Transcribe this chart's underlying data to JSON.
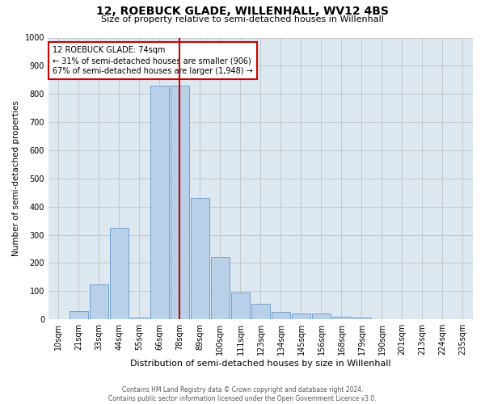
{
  "title": "12, ROEBUCK GLADE, WILLENHALL, WV12 4BS",
  "subtitle": "Size of property relative to semi-detached houses in Willenhall",
  "xlabel": "Distribution of semi-detached houses by size in Willenhall",
  "ylabel": "Number of semi-detached properties",
  "bar_labels": [
    "10sqm",
    "21sqm",
    "33sqm",
    "44sqm",
    "55sqm",
    "66sqm",
    "78sqm",
    "89sqm",
    "100sqm",
    "111sqm",
    "123sqm",
    "134sqm",
    "145sqm",
    "156sqm",
    "168sqm",
    "179sqm",
    "190sqm",
    "201sqm",
    "213sqm",
    "224sqm",
    "235sqm"
  ],
  "bar_values": [
    0,
    30,
    125,
    325,
    5,
    830,
    830,
    430,
    220,
    95,
    55,
    25,
    20,
    20,
    10,
    5,
    2,
    1,
    1,
    0,
    0
  ],
  "bar_color": "#b8d0e8",
  "bar_edge_color": "#6699cc",
  "property_line_label": "12 ROEBUCK GLADE: 74sqm",
  "pct_smaller": 31,
  "pct_larger": 67,
  "count_smaller": 906,
  "count_larger": 1948,
  "annotation_box_color": "#ffffff",
  "annotation_box_edge": "#cc0000",
  "line_color": "#cc0000",
  "line_x_index": 6.0,
  "ylim": [
    0,
    1000
  ],
  "yticks": [
    0,
    100,
    200,
    300,
    400,
    500,
    600,
    700,
    800,
    900,
    1000
  ],
  "grid_color": "#bbbbbb",
  "bg_color": "#dde8f0",
  "footer1": "Contains HM Land Registry data © Crown copyright and database right 2024.",
  "footer2": "Contains public sector information licensed under the Open Government Licence v3.0.",
  "title_fontsize": 10,
  "subtitle_fontsize": 8,
  "xlabel_fontsize": 8,
  "ylabel_fontsize": 7.5,
  "tick_fontsize": 7,
  "annot_fontsize": 7,
  "footer_fontsize": 5.5
}
